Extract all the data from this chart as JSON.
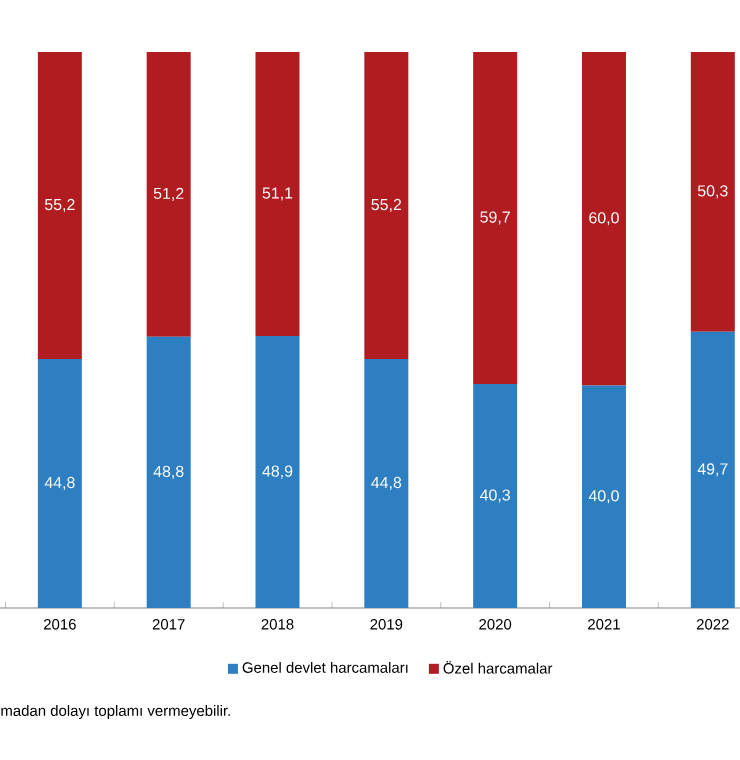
{
  "chart_data": {
    "type": "bar",
    "stacked": true,
    "legend": "bottom",
    "tick_labels": "x",
    "grid": false,
    "categories": [
      "2016",
      "2017",
      "2018",
      "2019",
      "2020",
      "2021",
      "2022"
    ],
    "series": [
      {
        "name": "Genel devlet harcamaları",
        "color": "#2e7fc2",
        "values": [
          44.8,
          48.8,
          48.9,
          44.8,
          40.3,
          40.0,
          49.7
        ],
        "value_labels": [
          "44,8",
          "48,8",
          "48,9",
          "44,8",
          "40,3",
          "40,0",
          "49,7"
        ]
      },
      {
        "name": "Özel harcamalar",
        "color": "#b01c20",
        "values": [
          55.2,
          51.2,
          51.1,
          55.2,
          59.7,
          60.0,
          50.3
        ],
        "value_labels": [
          "55,2",
          "51,2",
          "51,1",
          "55,2",
          "59,7",
          "60,0",
          "50,3"
        ]
      }
    ],
    "annotations": [
      "madan dolayı toplamı vermeyebilir."
    ]
  }
}
